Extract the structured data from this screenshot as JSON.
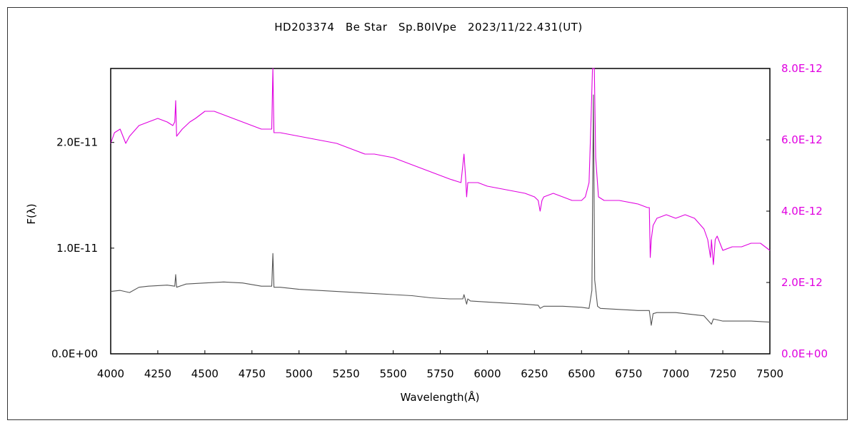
{
  "chart_data": {
    "type": "line",
    "title": "HD203374　Be Star　Sp.B0IVpe　2023/11/22.431(UT)",
    "xlabel": "Wavelength(Å)",
    "ylabel": "F(λ)",
    "xlim": [
      4000,
      7500
    ],
    "ylim_left": [
      0,
      2.7e-11
    ],
    "ylim_right": [
      0,
      8e-12
    ],
    "x_ticks": [
      4000,
      4250,
      4500,
      4750,
      5000,
      5250,
      5500,
      5750,
      6000,
      6250,
      6500,
      6750,
      7000,
      7250,
      7500
    ],
    "x_tick_labels": [
      "4000",
      "4250",
      "4500",
      "4750",
      "5000",
      "5250",
      "5500",
      "5750",
      "6000",
      "6250",
      "6500",
      "6750",
      "7000",
      "7250",
      "7500"
    ],
    "y_left_ticks": [
      0,
      1e-11,
      2e-11
    ],
    "y_left_tick_labels": [
      "0.0E+00",
      "1.0E-11",
      "2.0E-11"
    ],
    "y_right_ticks": [
      0,
      2e-12,
      4e-12,
      6e-12,
      8e-12
    ],
    "y_right_tick_labels": [
      "0.0E+00",
      "2.0E-12",
      "4.0E-12",
      "6.0E-12",
      "8.0E-12"
    ],
    "grid": false,
    "series": [
      {
        "axis": "left",
        "color": "#555555",
        "x": [
          4000,
          4050,
          4100,
          4150,
          4200,
          4300,
          4340,
          4345,
          4350,
          4400,
          4500,
          4600,
          4700,
          4800,
          4855,
          4861,
          4867,
          4900,
          5000,
          5100,
          5200,
          5300,
          5400,
          5500,
          5600,
          5700,
          5800,
          5870,
          5876,
          5890,
          5896,
          5910,
          6000,
          6100,
          6200,
          6270,
          6280,
          6300,
          6400,
          6500,
          6540,
          6555,
          6563,
          6570,
          6585,
          6600,
          6700,
          6800,
          6860,
          6870,
          6880,
          6900,
          7000,
          7100,
          7150,
          7190,
          7200,
          7250,
          7300,
          7400,
          7500
        ],
        "y": [
          5.9e-12,
          6e-12,
          5.8e-12,
          6.3e-12,
          6.4e-12,
          6.5e-12,
          6.4e-12,
          7.5e-12,
          6.3e-12,
          6.6e-12,
          6.7e-12,
          6.8e-12,
          6.7e-12,
          6.4e-12,
          6.4e-12,
          9.5e-12,
          6.3e-12,
          6.3e-12,
          6.1e-12,
          6e-12,
          5.9e-12,
          5.8e-12,
          5.7e-12,
          5.6e-12,
          5.5e-12,
          5.3e-12,
          5.2e-12,
          5.2e-12,
          5.6e-12,
          4.7e-12,
          5.2e-12,
          5e-12,
          4.9e-12,
          4.8e-12,
          4.7e-12,
          4.6e-12,
          4.3e-12,
          4.5e-12,
          4.5e-12,
          4.4e-12,
          4.3e-12,
          6e-12,
          2.45e-11,
          7e-12,
          4.5e-12,
          4.3e-12,
          4.2e-12,
          4.1e-12,
          4.1e-12,
          2.7e-12,
          3.8e-12,
          3.9e-12,
          3.9e-12,
          3.7e-12,
          3.6e-12,
          2.8e-12,
          3.3e-12,
          3.1e-12,
          3.1e-12,
          3.1e-12,
          3e-12
        ]
      },
      {
        "axis": "right",
        "color": "#e000e0",
        "x": [
          4000,
          4020,
          4050,
          4080,
          4100,
          4150,
          4200,
          4250,
          4300,
          4330,
          4340,
          4345,
          4350,
          4380,
          4420,
          4450,
          4500,
          4550,
          4600,
          4650,
          4700,
          4750,
          4800,
          4855,
          4861,
          4867,
          4900,
          5000,
          5100,
          5200,
          5250,
          5300,
          5350,
          5400,
          5500,
          5600,
          5700,
          5800,
          5860,
          5876,
          5885,
          5890,
          5896,
          5905,
          5950,
          6000,
          6100,
          6200,
          6250,
          6270,
          6280,
          6290,
          6300,
          6350,
          6400,
          6450,
          6500,
          6520,
          6540,
          6550,
          6558,
          6563,
          6568,
          6575,
          6590,
          6620,
          6700,
          6800,
          6850,
          6860,
          6865,
          6870,
          6880,
          6900,
          6950,
          7000,
          7050,
          7100,
          7150,
          7170,
          7185,
          7190,
          7200,
          7210,
          7220,
          7250,
          7300,
          7350,
          7400,
          7450,
          7500
        ],
        "y": [
          5.9e-12,
          6.2e-12,
          6.3e-12,
          5.9e-12,
          6.1e-12,
          6.4e-12,
          6.5e-12,
          6.6e-12,
          6.5e-12,
          6.4e-12,
          6.5e-12,
          7.1e-12,
          6.1e-12,
          6.3e-12,
          6.5e-12,
          6.6e-12,
          6.8e-12,
          6.8e-12,
          6.7e-12,
          6.6e-12,
          6.5e-12,
          6.4e-12,
          6.3e-12,
          6.3e-12,
          8e-12,
          6.2e-12,
          6.2e-12,
          6.1e-12,
          6e-12,
          5.9e-12,
          5.8e-12,
          5.7e-12,
          5.6e-12,
          5.6e-12,
          5.5e-12,
          5.3e-12,
          5.1e-12,
          4.9e-12,
          4.8e-12,
          5.6e-12,
          4.9e-12,
          4.4e-12,
          4.8e-12,
          4.8e-12,
          4.8e-12,
          4.7e-12,
          4.6e-12,
          4.5e-12,
          4.4e-12,
          4.3e-12,
          4e-12,
          4.3e-12,
          4.4e-12,
          4.5e-12,
          4.4e-12,
          4.3e-12,
          4.3e-12,
          4.4e-12,
          4.8e-12,
          6.5e-12,
          8e-12,
          8e-12,
          8e-12,
          5.5e-12,
          4.4e-12,
          4.3e-12,
          4.3e-12,
          4.2e-12,
          4.1e-12,
          4.1e-12,
          2.7e-12,
          3.2e-12,
          3.6e-12,
          3.8e-12,
          3.9e-12,
          3.8e-12,
          3.9e-12,
          3.8e-12,
          3.5e-12,
          3.2e-12,
          2.7e-12,
          3.2e-12,
          2.5e-12,
          3.2e-12,
          3.3e-12,
          2.9e-12,
          3e-12,
          3e-12,
          3.1e-12,
          3.1e-12,
          2.9e-12
        ]
      }
    ]
  }
}
